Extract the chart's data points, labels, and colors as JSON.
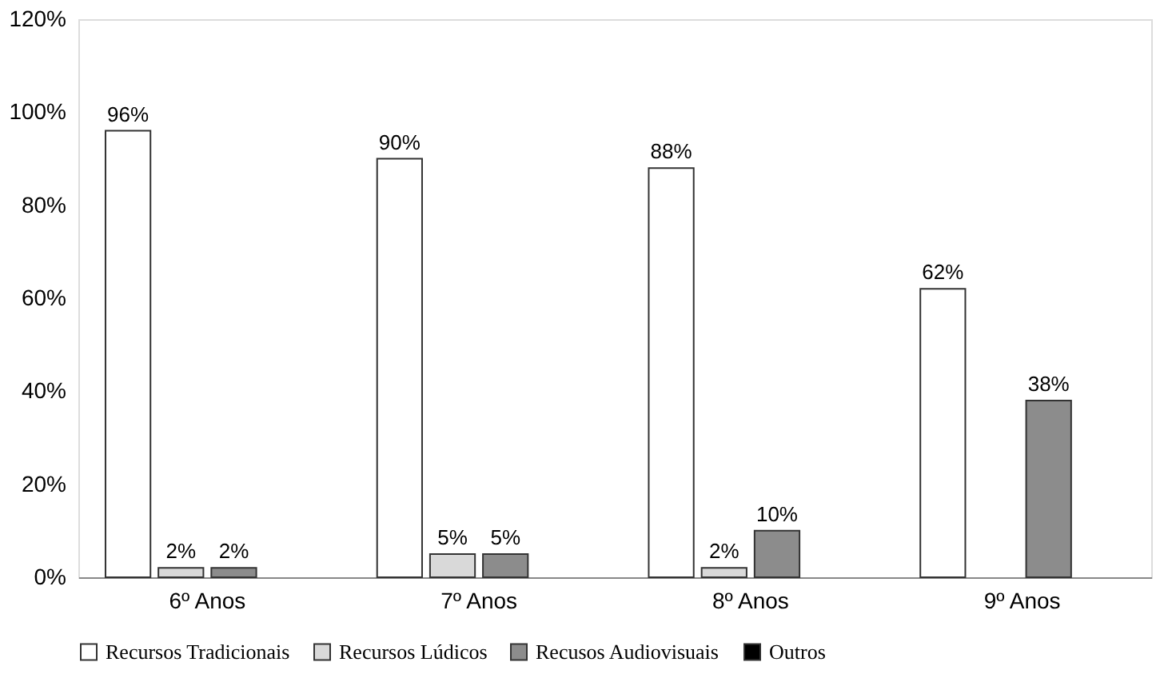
{
  "chart_data": {
    "type": "bar",
    "categories": [
      "6º Anos",
      "7º Anos",
      "8º Anos",
      "9º Anos"
    ],
    "series": [
      {
        "name": "Recursos Tradicionais",
        "color": "#ffffff",
        "values": [
          96,
          90,
          88,
          62
        ],
        "value_labels": [
          "96%",
          "90%",
          "88%",
          "62%"
        ]
      },
      {
        "name": "Recursos Lúdicos",
        "color": "#d9d9d9",
        "values": [
          2,
          5,
          2,
          null
        ],
        "value_labels": [
          "2%",
          "5%",
          "2%",
          null
        ]
      },
      {
        "name": "Recusos Audiovisuais",
        "color": "#8c8c8c",
        "values": [
          2,
          5,
          10,
          38
        ],
        "value_labels": [
          "2%",
          "5%",
          "10%",
          "38%"
        ]
      },
      {
        "name": "Outros",
        "color": "#000000",
        "values": [
          null,
          null,
          null,
          null
        ],
        "value_labels": [
          null,
          null,
          null,
          null
        ]
      }
    ],
    "ylim": [
      0,
      120
    ],
    "yticks": [
      {
        "value": 0,
        "label": "0%"
      },
      {
        "value": 20,
        "label": "20%"
      },
      {
        "value": 40,
        "label": "40%"
      },
      {
        "value": 60,
        "label": "60%"
      },
      {
        "value": 80,
        "label": "80%"
      },
      {
        "value": 100,
        "label": "100%"
      },
      {
        "value": 120,
        "label": "120%"
      }
    ],
    "grid": false,
    "legend": "bottom"
  }
}
